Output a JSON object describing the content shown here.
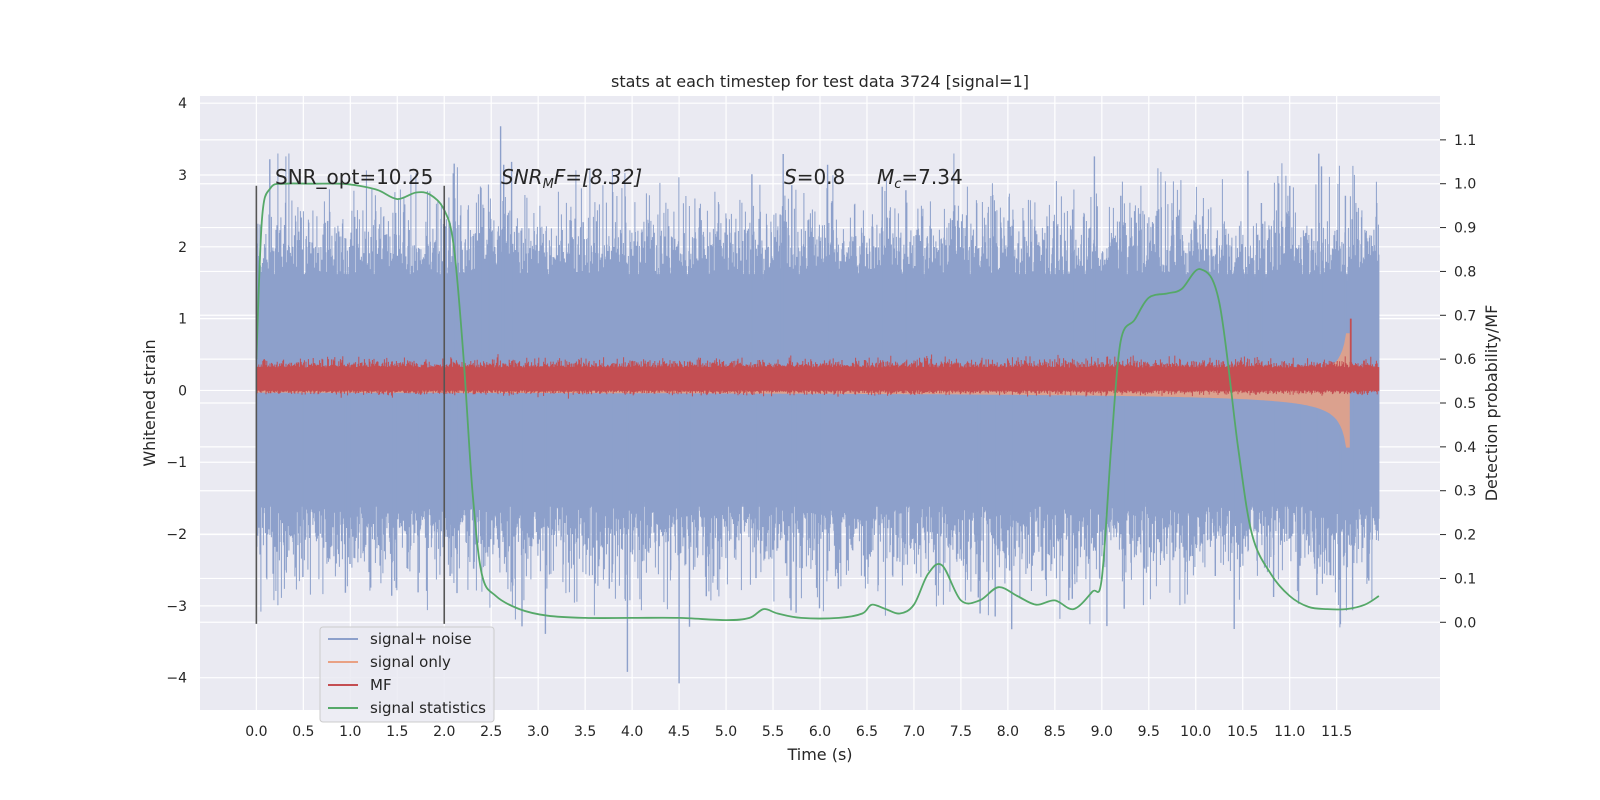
{
  "chart_data": {
    "type": "line",
    "title": "stats at each timestep for test data 3724 [signal=1]",
    "xlabel": "Time (s)",
    "ylabel": "Whitened strain",
    "ylabel_right": "Detection probability/MF",
    "xlim": [
      -0.6,
      12.6
    ],
    "ylim": [
      -4.45,
      4.1
    ],
    "ylim_right": [
      -0.2,
      1.2
    ],
    "x_ticks": [
      "0.0",
      "0.5",
      "1.0",
      "1.5",
      "2.0",
      "2.5",
      "3.0",
      "3.5",
      "4.0",
      "4.5",
      "5.0",
      "5.5",
      "6.0",
      "6.5",
      "7.0",
      "7.5",
      "8.0",
      "8.5",
      "9.0",
      "9.5",
      "10.0",
      "10.5",
      "11.0",
      "11.5"
    ],
    "y_ticks": [
      "4",
      "3",
      "2",
      "1",
      "0",
      "−1",
      "−2",
      "−3",
      "−4"
    ],
    "y_right_ticks": [
      "1.1",
      "1.0",
      "0.9",
      "0.8",
      "0.7",
      "0.6",
      "0.5",
      "0.4",
      "0.3",
      "0.2",
      "0.1",
      "0.0"
    ],
    "grid": true,
    "legend_position": "lower-left",
    "annotations": {
      "snr_opt": "SNR_opt=10.25",
      "snr_mf_sym": "SNR",
      "snr_mf_sub": "M",
      "snr_mf_rest": "F=[8.32]",
      "s_sym": "S",
      "s_rest": "=0.8",
      "mc_sym": "M",
      "mc_sub": "c",
      "mc_rest": "=7.34"
    },
    "window_markers_x": [
      0.0,
      2.0
    ],
    "series": [
      {
        "name": "signal+ noise",
        "color": "#8da0cb",
        "axis": "left",
        "style": "noise",
        "x_range": [
          0.0,
          11.95
        ],
        "envelope": 1.8,
        "extremes_y": [
          3.68,
          -4.08
        ]
      },
      {
        "name": "signal only",
        "color": "#e9a184",
        "axis": "left",
        "style": "chirp",
        "x_range": [
          0.0,
          11.65
        ],
        "amplitude_at_end": 1.25
      },
      {
        "name": "MF",
        "color": "#c44e52",
        "axis": "left",
        "style": "band",
        "x_range": [
          0.0,
          11.95
        ],
        "band": [
          0.0,
          0.32
        ],
        "peak": {
          "x": 11.65,
          "y": 1.0
        }
      },
      {
        "name": "signal statistics",
        "color": "#55a868",
        "axis": "right",
        "x": [
          0.0,
          0.06,
          0.15,
          0.3,
          0.6,
          0.9,
          1.1,
          1.3,
          1.5,
          1.7,
          1.85,
          2.0,
          2.1,
          2.2,
          2.3,
          2.4,
          2.55,
          2.8,
          3.1,
          3.5,
          4.0,
          4.5,
          5.0,
          5.25,
          5.4,
          5.55,
          5.8,
          6.2,
          6.45,
          6.55,
          6.7,
          6.85,
          7.0,
          7.15,
          7.3,
          7.5,
          7.7,
          7.9,
          8.1,
          8.3,
          8.5,
          8.7,
          8.9,
          9.0,
          9.1,
          9.2,
          9.35,
          9.5,
          9.7,
          9.85,
          10.05,
          10.25,
          10.45,
          10.6,
          10.8,
          11.0,
          11.2,
          11.4,
          11.6,
          11.8,
          11.95
        ],
        "y": [
          0.6,
          0.92,
          0.99,
          1.0,
          1.0,
          1.0,
          0.995,
          0.985,
          0.965,
          0.98,
          0.975,
          0.94,
          0.86,
          0.62,
          0.3,
          0.11,
          0.06,
          0.03,
          0.015,
          0.01,
          0.01,
          0.01,
          0.005,
          0.01,
          0.03,
          0.02,
          0.01,
          0.01,
          0.02,
          0.04,
          0.03,
          0.02,
          0.04,
          0.11,
          0.13,
          0.05,
          0.05,
          0.08,
          0.06,
          0.04,
          0.05,
          0.03,
          0.07,
          0.1,
          0.4,
          0.64,
          0.69,
          0.74,
          0.75,
          0.76,
          0.805,
          0.73,
          0.4,
          0.2,
          0.11,
          0.06,
          0.035,
          0.03,
          0.03,
          0.04,
          0.06
        ]
      }
    ]
  }
}
